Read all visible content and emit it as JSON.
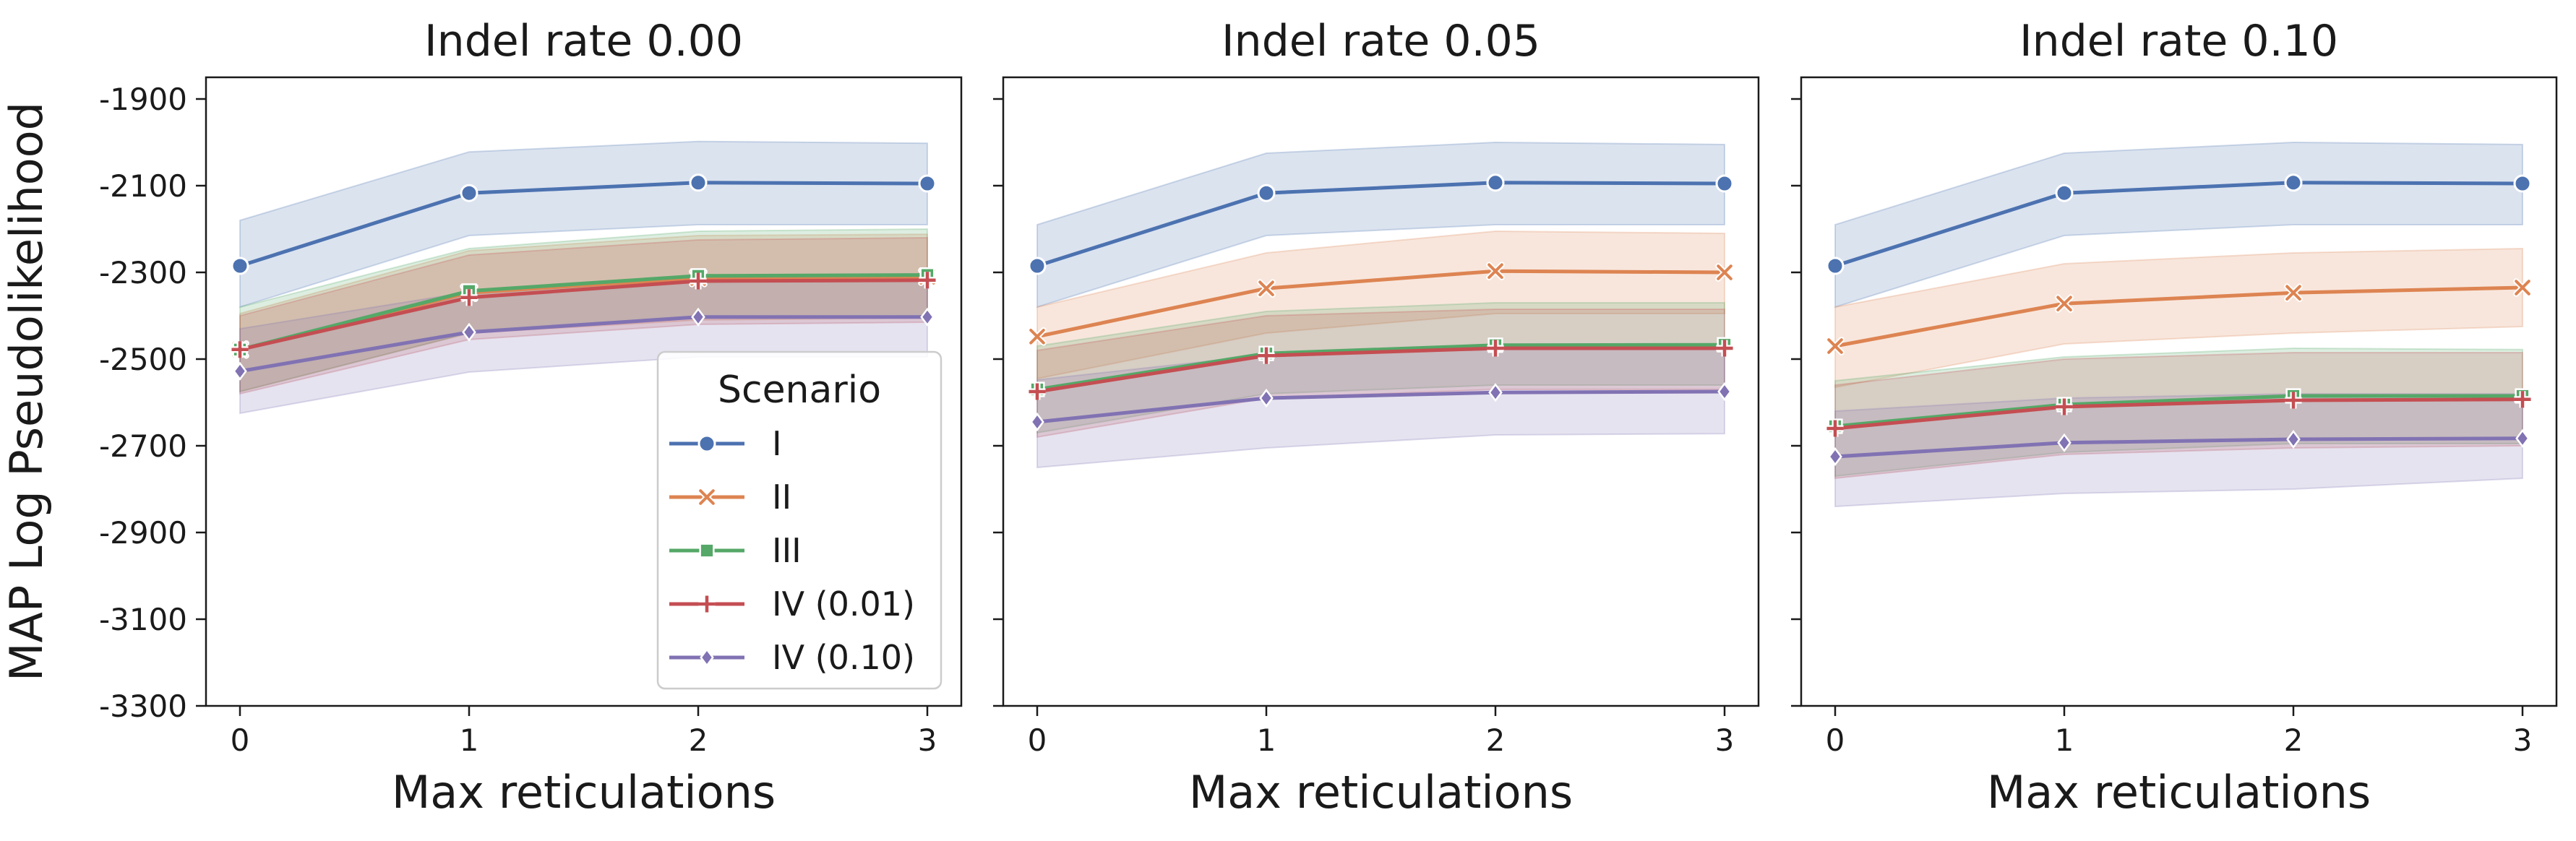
{
  "chart_data": [
    {
      "type": "line",
      "title": "Indel rate 0.00",
      "xlabel": "Max reticulations",
      "ylabel": "MAP Log Pseudolikelihood",
      "x": [
        0,
        1,
        2,
        3
      ],
      "xticks": [
        "0",
        "1",
        "2",
        "3"
      ],
      "ylim": [
        -3300,
        -1850
      ],
      "yticks": [
        "-1900",
        "-2100",
        "-2300",
        "-2500",
        "-2700",
        "-2900",
        "-3100",
        "-3300"
      ],
      "grid": false,
      "legend": {
        "title": "Scenario",
        "placement": "lower-right",
        "entries": [
          "I",
          "II",
          "III",
          "IV (0.01)",
          "IV (0.10)"
        ]
      },
      "series": [
        {
          "name": "I",
          "color": "#4c72b0",
          "marker": "circle",
          "values": [
            -2285,
            -2117,
            -2093,
            -2095
          ],
          "lower": [
            -2380,
            -2215,
            -2190,
            -2190
          ],
          "upper": [
            -2180,
            -2022,
            -1998,
            -2002
          ]
        },
        {
          "name": "II",
          "color": "#dd8452",
          "marker": "x",
          "values": [
            -2478,
            -2347,
            -2313,
            -2310
          ],
          "lower": [
            -2575,
            -2440,
            -2410,
            -2405
          ],
          "upper": [
            -2395,
            -2250,
            -2215,
            -2212
          ]
        },
        {
          "name": "III",
          "color": "#55a868",
          "marker": "square",
          "values": [
            -2478,
            -2343,
            -2308,
            -2306
          ],
          "lower": [
            -2575,
            -2440,
            -2405,
            -2400
          ],
          "upper": [
            -2380,
            -2245,
            -2205,
            -2200
          ]
        },
        {
          "name": "IV (0.01)",
          "color": "#c44e52",
          "marker": "plus",
          "values": [
            -2478,
            -2358,
            -2320,
            -2318
          ],
          "lower": [
            -2580,
            -2455,
            -2420,
            -2415
          ],
          "upper": [
            -2400,
            -2260,
            -2225,
            -2220
          ]
        },
        {
          "name": "IV (0.10)",
          "color": "#8172b3",
          "marker": "diamond",
          "values": [
            -2528,
            -2438,
            -2403,
            -2403
          ],
          "lower": [
            -2625,
            -2530,
            -2495,
            -2495
          ],
          "upper": [
            -2430,
            -2345,
            -2310,
            -2310
          ]
        }
      ]
    },
    {
      "type": "line",
      "title": "Indel rate 0.05",
      "xlabel": "Max reticulations",
      "ylabel": "",
      "x": [
        0,
        1,
        2,
        3
      ],
      "xticks": [
        "0",
        "1",
        "2",
        "3"
      ],
      "ylim": [
        -3300,
        -1850
      ],
      "yticks": [],
      "grid": false,
      "series": [
        {
          "name": "I",
          "color": "#4c72b0",
          "marker": "circle",
          "values": [
            -2285,
            -2117,
            -2093,
            -2095
          ],
          "lower": [
            -2380,
            -2215,
            -2190,
            -2190
          ],
          "upper": [
            -2190,
            -2025,
            -2000,
            -2005
          ]
        },
        {
          "name": "II",
          "color": "#dd8452",
          "marker": "x",
          "values": [
            -2448,
            -2337,
            -2297,
            -2300
          ],
          "lower": [
            -2545,
            -2440,
            -2395,
            -2395
          ],
          "upper": [
            -2380,
            -2255,
            -2205,
            -2210
          ]
        },
        {
          "name": "III",
          "color": "#55a868",
          "marker": "square",
          "values": [
            -2570,
            -2487,
            -2468,
            -2467
          ],
          "lower": [
            -2670,
            -2580,
            -2560,
            -2560
          ],
          "upper": [
            -2470,
            -2390,
            -2370,
            -2370
          ]
        },
        {
          "name": "IV (0.01)",
          "color": "#c44e52",
          "marker": "plus",
          "values": [
            -2575,
            -2492,
            -2475,
            -2475
          ],
          "lower": [
            -2680,
            -2590,
            -2570,
            -2570
          ],
          "upper": [
            -2480,
            -2400,
            -2385,
            -2385
          ]
        },
        {
          "name": "IV (0.10)",
          "color": "#8172b3",
          "marker": "diamond",
          "values": [
            -2645,
            -2590,
            -2577,
            -2575
          ],
          "lower": [
            -2750,
            -2705,
            -2675,
            -2672
          ],
          "upper": [
            -2548,
            -2490,
            -2478,
            -2478
          ]
        }
      ]
    },
    {
      "type": "line",
      "title": "Indel rate 0.10",
      "xlabel": "Max reticulations",
      "ylabel": "",
      "x": [
        0,
        1,
        2,
        3
      ],
      "xticks": [
        "0",
        "1",
        "2",
        "3"
      ],
      "ylim": [
        -3300,
        -1850
      ],
      "yticks": [],
      "grid": false,
      "series": [
        {
          "name": "I",
          "color": "#4c72b0",
          "marker": "circle",
          "values": [
            -2285,
            -2117,
            -2093,
            -2095
          ],
          "lower": [
            -2380,
            -2215,
            -2190,
            -2190
          ],
          "upper": [
            -2190,
            -2025,
            -2000,
            -2005
          ]
        },
        {
          "name": "II",
          "color": "#dd8452",
          "marker": "x",
          "values": [
            -2470,
            -2372,
            -2347,
            -2335
          ],
          "lower": [
            -2565,
            -2465,
            -2440,
            -2425
          ],
          "upper": [
            -2380,
            -2280,
            -2255,
            -2245
          ]
        },
        {
          "name": "III",
          "color": "#55a868",
          "marker": "square",
          "values": [
            -2655,
            -2605,
            -2585,
            -2585
          ],
          "lower": [
            -2770,
            -2715,
            -2695,
            -2695
          ],
          "upper": [
            -2550,
            -2495,
            -2475,
            -2478
          ]
        },
        {
          "name": "IV (0.01)",
          "color": "#c44e52",
          "marker": "plus",
          "values": [
            -2660,
            -2610,
            -2595,
            -2593
          ],
          "lower": [
            -2775,
            -2720,
            -2705,
            -2700
          ],
          "upper": [
            -2560,
            -2500,
            -2485,
            -2485
          ]
        },
        {
          "name": "IV (0.10)",
          "color": "#8172b3",
          "marker": "diamond",
          "values": [
            -2725,
            -2693,
            -2685,
            -2683
          ],
          "lower": [
            -2840,
            -2810,
            -2800,
            -2775
          ],
          "upper": [
            -2620,
            -2590,
            -2580,
            -2580
          ]
        }
      ]
    }
  ]
}
